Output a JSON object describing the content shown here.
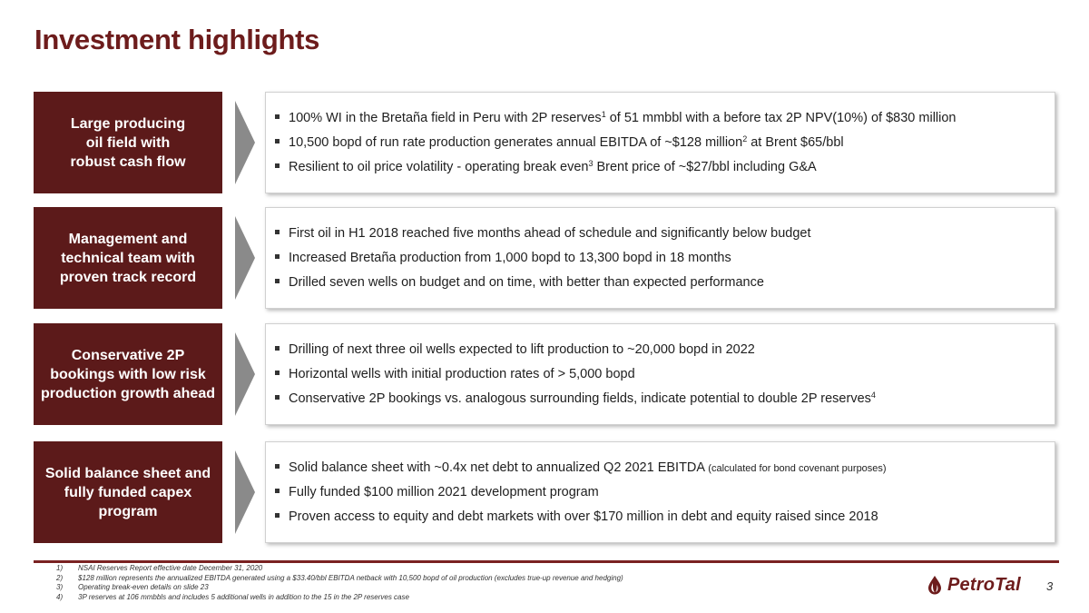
{
  "title": "Investment highlights",
  "rows": [
    {
      "label": [
        "Large producing",
        "oil field with",
        "robust cash flow"
      ],
      "bullets": [
        {
          "parts": [
            {
              "t": "100% WI in the Bretaña field in Peru with 2P reserves"
            },
            {
              "t": "1",
              "sup": true
            },
            {
              "t": " of 51 mmbbl with a before tax 2P NPV(10%) of $830 million"
            }
          ]
        },
        {
          "parts": [
            {
              "t": "10,500 bopd of run rate production generates annual EBITDA of ~$128 million"
            },
            {
              "t": "2",
              "sup": true
            },
            {
              "t": " at Brent $65/bbl"
            }
          ]
        },
        {
          "parts": [
            {
              "t": "Resilient to oil price volatility - operating break even"
            },
            {
              "t": "3",
              "sup": true
            },
            {
              "t": " Brent price of ~$27/bbl including G&A"
            }
          ]
        }
      ]
    },
    {
      "label": [
        "Management and",
        "technical team with",
        "proven track record"
      ],
      "bullets": [
        {
          "parts": [
            {
              "t": "First oil in H1 2018 reached five months ahead of schedule and significantly below budget"
            }
          ]
        },
        {
          "parts": [
            {
              "t": "Increased Bretaña production from 1,000 bopd to 13,300 bopd in 18 months"
            }
          ]
        },
        {
          "parts": [
            {
              "t": "Drilled seven wells on budget and on time, with better than expected performance"
            }
          ]
        }
      ]
    },
    {
      "label": [
        "Conservative 2P",
        "bookings with low risk",
        "production growth ahead"
      ],
      "bullets": [
        {
          "parts": [
            {
              "t": "Drilling of next three oil wells expected to lift production to ~20,000 bopd in 2022"
            }
          ]
        },
        {
          "parts": [
            {
              "t": "Horizontal wells with initial production rates of > 5,000 bopd"
            }
          ]
        },
        {
          "parts": [
            {
              "t": "Conservative 2P bookings vs. analogous surrounding fields, indicate potential to double 2P reserves"
            },
            {
              "t": "4",
              "sup": true
            }
          ]
        }
      ]
    },
    {
      "label": [
        "Solid balance sheet and",
        "fully funded capex",
        "program"
      ],
      "bullets": [
        {
          "parts": [
            {
              "t": "Solid balance sheet with  ~0.4x net debt to annualized Q2 2021 EBITDA "
            },
            {
              "t": "(calculated for bond covenant purposes)",
              "small": true
            }
          ]
        },
        {
          "parts": [
            {
              "t": "Fully funded $100 million 2021 development program"
            }
          ]
        },
        {
          "parts": [
            {
              "t": "Proven access to equity and debt markets with over $170 million in debt and equity raised since 2018"
            }
          ]
        }
      ]
    }
  ],
  "footnotes": [
    {
      "num": "1)",
      "text": "NSAI Reserves Report effective date December 31, 2020"
    },
    {
      "num": "2)",
      "text": "$128 million represents the annualized EBITDA generated using a $33.40/bbl EBITDA netback with 10,500 bopd of oil production (excludes true-up revenue and hedging)"
    },
    {
      "num": "3)",
      "text": "Operating break-even details on slide 23"
    },
    {
      "num": "4)",
      "text": "3P reserves at 106 mmbbls and includes 5 additional wells in addition to the 15 in the 2P reserves case"
    }
  ],
  "logo": {
    "text": "PetroTal",
    "icon": "oil-drop-logo-icon"
  },
  "page_number": "3",
  "colors": {
    "brand": "#5c1a1a",
    "title": "#6d1c1c",
    "chevron": "#8a8a8a"
  }
}
